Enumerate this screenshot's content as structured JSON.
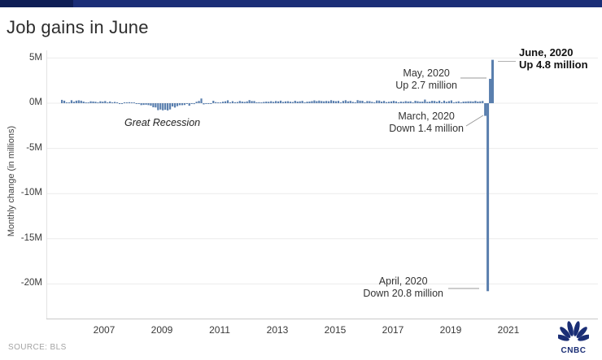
{
  "header": {
    "title": "Job gains in June"
  },
  "source_label": "SOURCE: BLS",
  "logo": {
    "wordmark": "CNBC"
  },
  "colors": {
    "accent_bar": "#1b2e77",
    "accent_bar_dark": "#0f1e55",
    "grid": "#ebebeb",
    "axis": "#c9c9c9",
    "logo_navy": "#1a2e75"
  },
  "chart_data": {
    "type": "bar",
    "title": "Job gains in June",
    "ylabel": "Monthly change (in millions)",
    "ylim": [
      -22.5,
      6.2
    ],
    "grid": "horizontal",
    "legend": "none",
    "bar_color": "#5a7fae",
    "yticks": [
      "5M",
      "0M",
      "-5M",
      "-10M",
      "-15M",
      "-20M"
    ],
    "ytick_values": [
      5,
      0,
      -5,
      -10,
      -15,
      -20
    ],
    "xticks": [
      "2007",
      "2009",
      "2011",
      "2013",
      "2015",
      "2017",
      "2019",
      "2021"
    ],
    "x_start_month": "2005-07",
    "x_end_month": "2020-06",
    "unit": "millions of jobs, monthly change",
    "values": [
      0.37,
      0.28,
      0.07,
      0.08,
      0.33,
      0.16,
      0.28,
      0.32,
      0.28,
      0.18,
      0.02,
      0.08,
      0.21,
      0.19,
      0.16,
      0.02,
      0.21,
      0.17,
      0.24,
      0.09,
      0.19,
      0.08,
      0.14,
      0.07,
      -0.03,
      -0.02,
      0.09,
      0.08,
      0.11,
      0.09,
      0.01,
      -0.09,
      -0.05,
      -0.21,
      -0.19,
      -0.17,
      -0.21,
      -0.27,
      -0.45,
      -0.47,
      -0.77,
      -0.7,
      -0.79,
      -0.73,
      -0.8,
      -0.69,
      -0.36,
      -0.48,
      -0.33,
      -0.22,
      -0.22,
      -0.2,
      -0.01,
      -0.28,
      -0.04,
      -0.1,
      0.16,
      0.25,
      0.52,
      -0.13,
      -0.07,
      -0.04,
      -0.05,
      0.27,
      0.12,
      0.09,
      0.04,
      0.17,
      0.21,
      0.32,
      0.1,
      0.22,
      0.11,
      0.13,
      0.25,
      0.18,
      0.14,
      0.2,
      0.34,
      0.24,
      0.24,
      0.1,
      0.11,
      0.09,
      0.14,
      0.18,
      0.16,
      0.22,
      0.15,
      0.24,
      0.2,
      0.28,
      0.14,
      0.2,
      0.22,
      0.17,
      0.13,
      0.27,
      0.18,
      0.21,
      0.26,
      0.09,
      0.17,
      0.19,
      0.23,
      0.31,
      0.23,
      0.29,
      0.24,
      0.21,
      0.25,
      0.22,
      0.33,
      0.26,
      0.22,
      0.26,
      0.09,
      0.25,
      0.33,
      0.21,
      0.26,
      0.15,
      0.1,
      0.34,
      0.28,
      0.27,
      0.1,
      0.24,
      0.23,
      0.15,
      0.04,
      0.3,
      0.29,
      0.18,
      0.25,
      0.12,
      0.16,
      0.2,
      0.26,
      0.2,
      0.1,
      0.18,
      0.15,
      0.23,
      0.19,
      0.21,
      0.01,
      0.27,
      0.22,
      0.17,
      0.18,
      0.4,
      0.15,
      0.18,
      0.27,
      0.25,
      0.16,
      0.28,
      0.11,
      0.28,
      0.15,
      0.23,
      0.31,
      0.06,
      0.15,
      0.21,
      0.06,
      0.18,
      0.19,
      0.21,
      0.21,
      0.19,
      0.26,
      0.18,
      0.21,
      0.25,
      -1.4,
      -20.8,
      2.7,
      4.8
    ],
    "annotations": {
      "june": {
        "line1": "June, 2020",
        "line2": "Up 4.8 million"
      },
      "may": {
        "line1": "May, 2020",
        "line2": "Up 2.7 million"
      },
      "march": {
        "line1": "March, 2020",
        "line2": "Down 1.4 million"
      },
      "april": {
        "line1": "April, 2020",
        "line2": "Down 20.8 million"
      },
      "recession": {
        "text": "Great Recession"
      }
    }
  }
}
